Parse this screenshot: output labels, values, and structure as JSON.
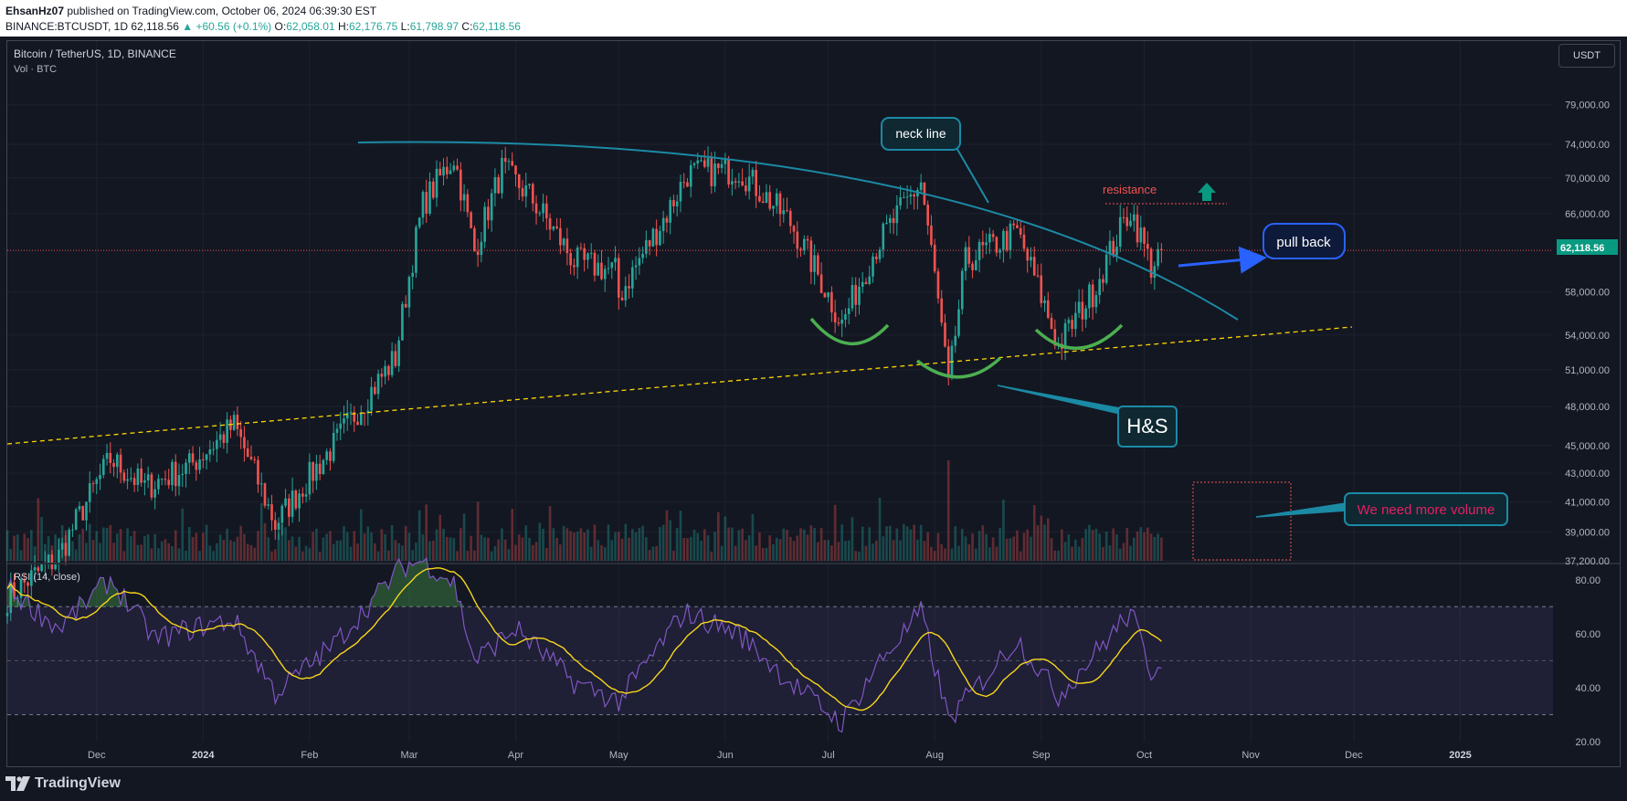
{
  "header": {
    "author": "EhsanHz07",
    "publish_text": " published on TradingView.com, October 06, 2024 06:39:30 EST",
    "symbol": "BINANCE:BTCUSDT, 1D",
    "last": "62,118.56",
    "change": "+60.56 (+0.1%)",
    "o_label": "O:",
    "o": "62,058.01",
    "h_label": "H:",
    "h": "62,176.75",
    "l_label": "L:",
    "l": "61,798.97",
    "c_label": "C:",
    "c": "62,118.56"
  },
  "legend": {
    "title": "Bitcoin / TetherUS, 1D, BINANCE",
    "volume": "Vol · BTC",
    "rsi": "RSI (14, close)"
  },
  "currency_button": "USDT",
  "branding": "TradingView",
  "colors": {
    "background": "#131722",
    "up": "#26a69a",
    "down": "#ef5350",
    "teal_line": "#1b8aa5",
    "rsi_line": "#7e57c2",
    "rsi_ma": "#f7d51d",
    "support": "#ffd600",
    "annotation_green": "#4caf50",
    "arrow_blue": "#2962ff"
  },
  "chart_data": {
    "type": "candlestick",
    "symbol": "BTCUSDT",
    "timeframe": "1D",
    "y_scale": "log",
    "ylim": [
      37200,
      82000
    ],
    "last_price": 62118.56,
    "last_price_label": "62,118.56",
    "price_ticks": [
      {
        "value": 79000,
        "label": "79,000.00"
      },
      {
        "value": 74000,
        "label": "74,000.00"
      },
      {
        "value": 70000,
        "label": "70,000.00"
      },
      {
        "value": 66000,
        "label": "66,000.00"
      },
      {
        "value": 58000,
        "label": "58,000.00"
      },
      {
        "value": 54000,
        "label": "54,000.00"
      },
      {
        "value": 51000,
        "label": "51,000.00"
      },
      {
        "value": 48000,
        "label": "48,000.00"
      },
      {
        "value": 45000,
        "label": "45,000.00"
      },
      {
        "value": 43000,
        "label": "43,000.00"
      },
      {
        "value": 41000,
        "label": "41,000.00"
      },
      {
        "value": 39000,
        "label": "39,000.00"
      },
      {
        "value": 37200,
        "label": "37,200.00"
      }
    ],
    "x_ticks": [
      {
        "label": "Dec",
        "bold": false
      },
      {
        "label": "2024",
        "bold": true
      },
      {
        "label": "Feb",
        "bold": false
      },
      {
        "label": "Mar",
        "bold": false
      },
      {
        "label": "Apr",
        "bold": false
      },
      {
        "label": "May",
        "bold": false
      },
      {
        "label": "Jun",
        "bold": false
      },
      {
        "label": "Jul",
        "bold": false
      },
      {
        "label": "Aug",
        "bold": false
      },
      {
        "label": "Sep",
        "bold": false
      },
      {
        "label": "Oct",
        "bold": false
      },
      {
        "label": "Nov",
        "bold": false
      },
      {
        "label": "Dec",
        "bold": false
      },
      {
        "label": "2025",
        "bold": true
      }
    ],
    "price_path": [
      [
        "2023-11-05",
        35000
      ],
      [
        "2023-11-20",
        37500
      ],
      [
        "2023-12-05",
        44000
      ],
      [
        "2023-12-15",
        42000
      ],
      [
        "2023-12-28",
        43500
      ],
      [
        "2024-01-10",
        46500
      ],
      [
        "2024-01-22",
        39500
      ],
      [
        "2024-02-08",
        45000
      ],
      [
        "2024-02-26",
        52000
      ],
      [
        "2024-03-05",
        67000
      ],
      [
        "2024-03-14",
        72500
      ],
      [
        "2024-03-20",
        62000
      ],
      [
        "2024-03-28",
        71000
      ],
      [
        "2024-04-05",
        68000
      ],
      [
        "2024-04-18",
        61000
      ],
      [
        "2024-04-30",
        60000
      ],
      [
        "2024-05-01",
        57500
      ],
      [
        "2024-05-15",
        66000
      ],
      [
        "2024-05-21",
        70500
      ],
      [
        "2024-06-05",
        71000
      ],
      [
        "2024-06-20",
        65000
      ],
      [
        "2024-07-05",
        55000
      ],
      [
        "2024-07-15",
        62500
      ],
      [
        "2024-07-28",
        69500
      ],
      [
        "2024-08-05",
        49500
      ],
      [
        "2024-08-10",
        61000
      ],
      [
        "2024-08-25",
        64000
      ],
      [
        "2024-09-06",
        53000
      ],
      [
        "2024-09-16",
        58000
      ],
      [
        "2024-09-27",
        66500
      ],
      [
        "2024-10-03",
        60500
      ],
      [
        "2024-10-06",
        62118.56
      ]
    ],
    "rsi": {
      "label": "RSI (14, close)",
      "ylim": [
        20,
        85
      ],
      "ticks": [
        {
          "value": 80,
          "label": "80.00"
        },
        {
          "value": 60,
          "label": "60.00"
        },
        {
          "value": 40,
          "label": "40.00"
        },
        {
          "value": 20,
          "label": "20.00"
        }
      ],
      "bands": [
        70,
        50,
        30
      ],
      "path": [
        [
          "2023-11-05",
          77
        ],
        [
          "2023-11-20",
          62
        ],
        [
          "2023-12-05",
          80
        ],
        [
          "2023-12-18",
          58
        ],
        [
          "2024-01-01",
          63
        ],
        [
          "2024-01-10",
          65
        ],
        [
          "2024-01-22",
          38
        ],
        [
          "2024-02-08",
          56
        ],
        [
          "2024-02-28",
          85
        ],
        [
          "2024-03-05",
          87
        ],
        [
          "2024-03-14",
          79
        ],
        [
          "2024-03-20",
          50
        ],
        [
          "2024-04-01",
          62
        ],
        [
          "2024-04-18",
          42
        ],
        [
          "2024-05-01",
          35
        ],
        [
          "2024-05-20",
          68
        ],
        [
          "2024-06-05",
          60
        ],
        [
          "2024-06-20",
          42
        ],
        [
          "2024-07-05",
          27
        ],
        [
          "2024-07-15",
          48
        ],
        [
          "2024-07-28",
          68
        ],
        [
          "2024-08-05",
          28
        ],
        [
          "2024-08-25",
          58
        ],
        [
          "2024-09-06",
          37
        ],
        [
          "2024-09-27",
          68
        ],
        [
          "2024-10-03",
          46
        ],
        [
          "2024-10-06",
          51
        ]
      ]
    }
  },
  "annotations": {
    "neck_line": "neck line",
    "resistance": "resistance",
    "pull_back": "pull back",
    "hs": "H&S",
    "volume_note": "We need more volume"
  }
}
